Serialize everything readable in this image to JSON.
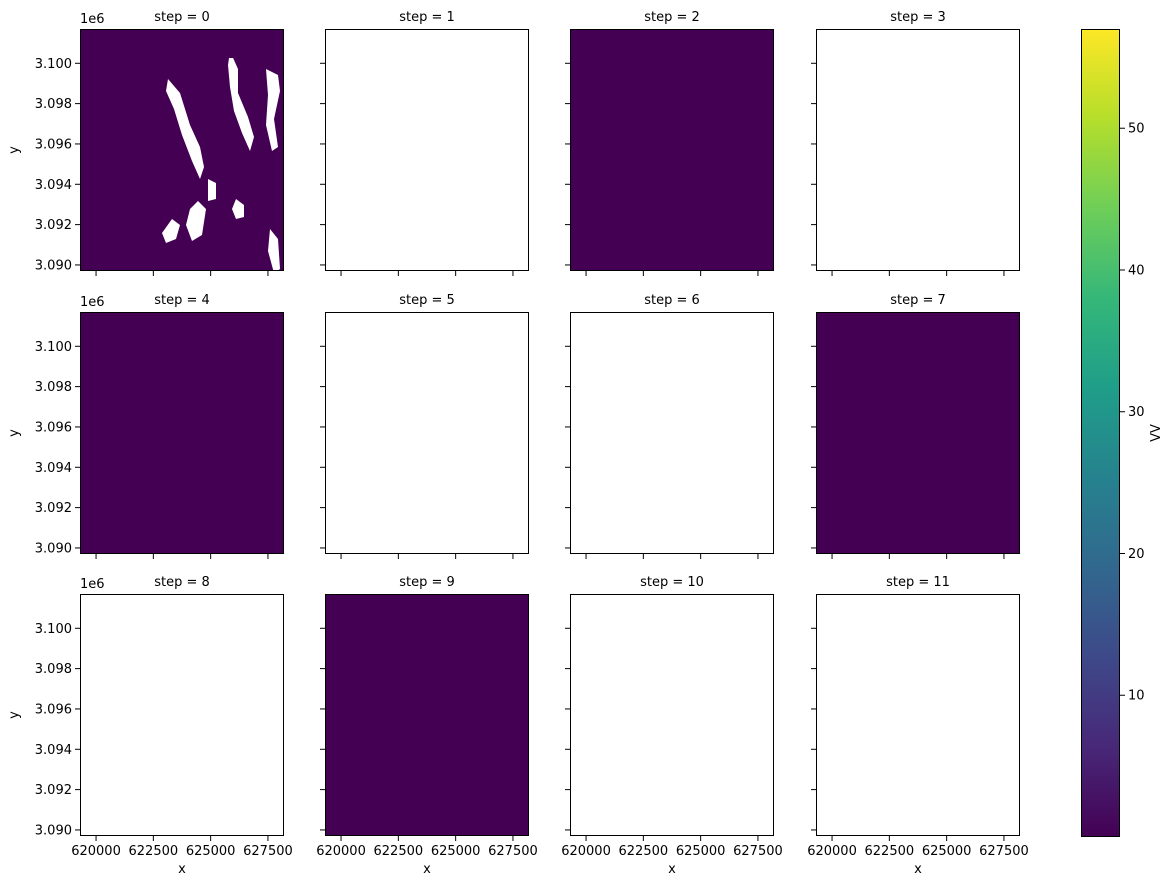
{
  "chart_data": {
    "type": "heatmap",
    "layout": {
      "rows": 3,
      "cols": 4
    },
    "x_ticks": [
      620000,
      622500,
      625000,
      627500
    ],
    "x_tick_labels": [
      "620000",
      "622500",
      "625000",
      "627500"
    ],
    "y_ticks": [
      3.09,
      3.092,
      3.094,
      3.096,
      3.098,
      3.1
    ],
    "y_tick_labels": [
      "3.090",
      "3.092",
      "3.094",
      "3.096",
      "3.098",
      "3.100"
    ],
    "y_offset_label": "1e6",
    "xlim": [
      619300,
      628200
    ],
    "ylim": [
      3.0897,
      3.1017
    ],
    "xlabel": "x",
    "ylabel": "y",
    "panels": [
      {
        "title": "step = 0",
        "has_data": true
      },
      {
        "title": "step = 1",
        "has_data": false
      },
      {
        "title": "step = 2",
        "has_data": true
      },
      {
        "title": "step = 3",
        "has_data": false
      },
      {
        "title": "step = 4",
        "has_data": true
      },
      {
        "title": "step = 5",
        "has_data": false
      },
      {
        "title": "step = 6",
        "has_data": false
      },
      {
        "title": "step = 7",
        "has_data": true
      },
      {
        "title": "step = 8",
        "has_data": false
      },
      {
        "title": "step = 9",
        "has_data": true
      },
      {
        "title": "step = 10",
        "has_data": false
      },
      {
        "title": "step = 11",
        "has_data": false
      }
    ],
    "colorbar": {
      "label": "VV",
      "colormap": "viridis",
      "range": [
        0,
        57
      ],
      "ticks": [
        10,
        20,
        30,
        40,
        50
      ],
      "tick_labels": [
        "10",
        "20",
        "30",
        "40",
        "50"
      ]
    }
  },
  "colors": {
    "background_low": "#440154",
    "masked": "#ffffff",
    "viridis": [
      "#440154",
      "#482878",
      "#3e4989",
      "#31688e",
      "#26828e",
      "#1f9e89",
      "#35b779",
      "#6ece58",
      "#b5de2b",
      "#fde725"
    ]
  }
}
